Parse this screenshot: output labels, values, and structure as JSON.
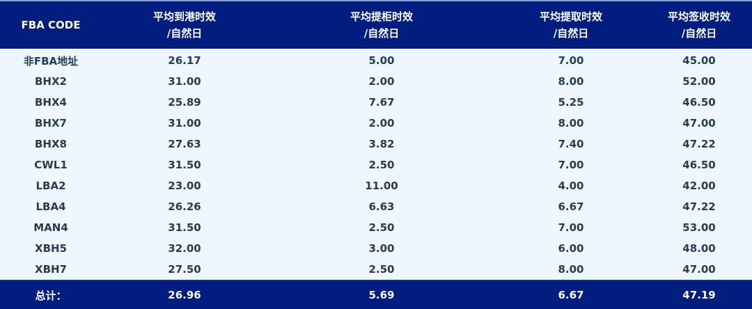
{
  "table": {
    "headers": [
      {
        "line1": "FBA CODE",
        "line2": ""
      },
      {
        "line1": "平均到港时效",
        "line2": "/自然日"
      },
      {
        "line1": "平均提柜时效",
        "line2": "/自然日"
      },
      {
        "line1": "平均提取时效",
        "line2": "/自然日"
      },
      {
        "line1": "平均签收时效",
        "line2": "/自然日"
      }
    ],
    "rows": [
      [
        "非FBA地址",
        "26.17",
        "5.00",
        "7.00",
        "45.00"
      ],
      [
        "BHX2",
        "31.00",
        "2.00",
        "8.00",
        "52.00"
      ],
      [
        "BHX4",
        "25.89",
        "7.67",
        "5.25",
        "46.50"
      ],
      [
        "BHX7",
        "31.00",
        "2.00",
        "8.00",
        "47.00"
      ],
      [
        "BHX8",
        "27.63",
        "3.82",
        "7.40",
        "47.22"
      ],
      [
        "CWL1",
        "31.50",
        "2.50",
        "7.00",
        "46.50"
      ],
      [
        "LBA2",
        "23.00",
        "11.00",
        "4.00",
        "42.00"
      ],
      [
        "LBA4",
        "26.26",
        "6.63",
        "6.67",
        "47.22"
      ],
      [
        "MAN4",
        "31.50",
        "2.50",
        "7.00",
        "53.00"
      ],
      [
        "XBH5",
        "32.00",
        "3.00",
        "6.00",
        "48.00"
      ],
      [
        "XBH7",
        "27.50",
        "2.50",
        "8.00",
        "47.00"
      ]
    ],
    "total": [
      "总计：",
      "26.96",
      "5.69",
      "6.67",
      "47.19"
    ]
  },
  "colors": {
    "header_bg": "#021d80",
    "body_bg": "#eef7ff",
    "text": "#263a5c"
  }
}
